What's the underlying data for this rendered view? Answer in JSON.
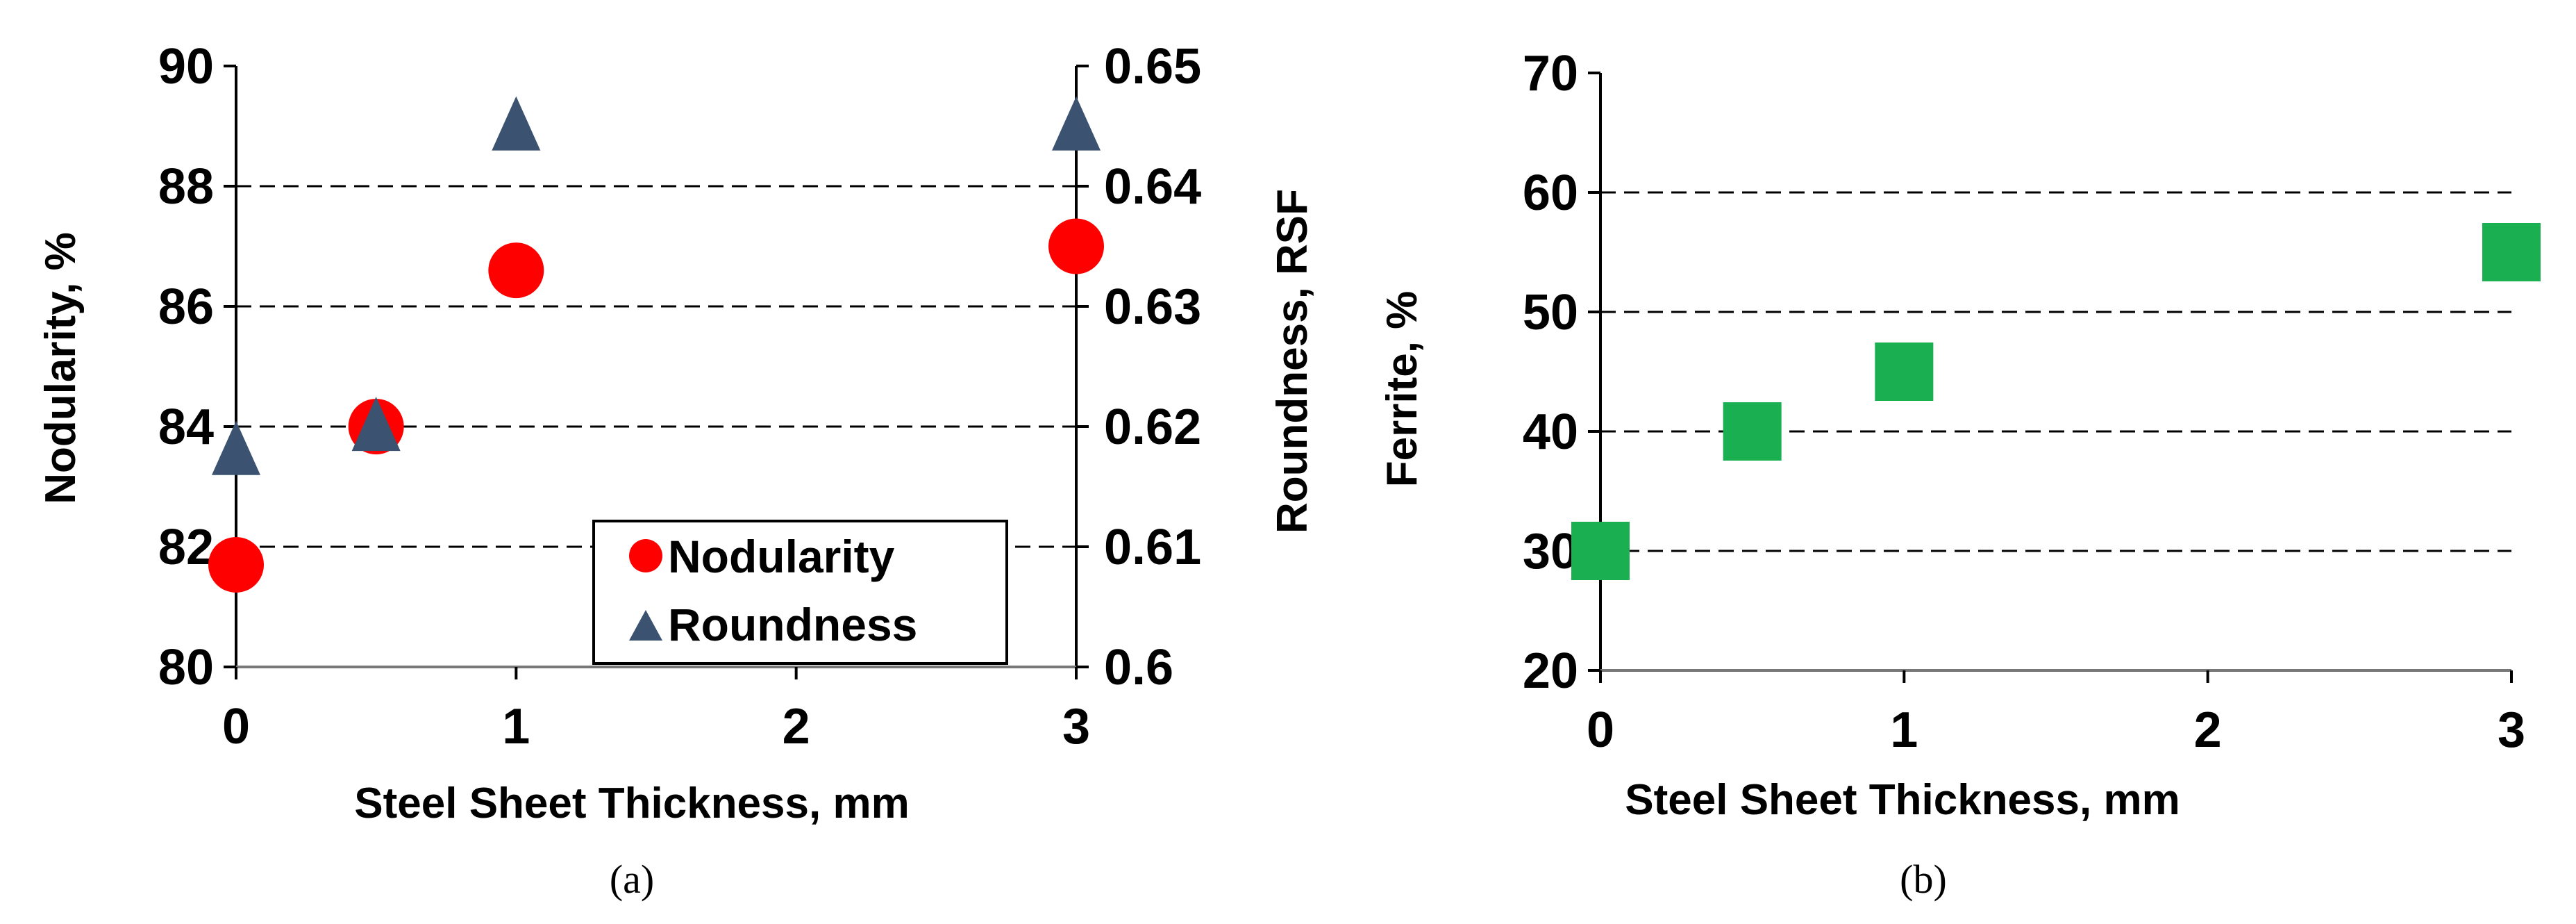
{
  "chart_data": [
    {
      "type": "scatter",
      "caption": "(a)",
      "xlabel": "Steel Sheet Thickness, mm",
      "ylabel": "Nodularity, %",
      "y2label": "Roundness, RSF",
      "xlim": [
        0,
        3
      ],
      "ylim": [
        80,
        90
      ],
      "y2lim": [
        0.6,
        0.65
      ],
      "xticks": [
        "0",
        "1",
        "2",
        "3"
      ],
      "yticks": [
        "80",
        "82",
        "84",
        "86",
        "88",
        "90"
      ],
      "y2ticks": [
        "0.6",
        "0.61",
        "0.62",
        "0.63",
        "0.64",
        "0.65"
      ],
      "grid": "horizontal dashed",
      "legend": "bottom-right",
      "series": [
        {
          "name": "Nodularity",
          "axis": "left",
          "marker": "circle",
          "color": "#ff0000",
          "x": [
            0,
            0.5,
            1,
            3
          ],
          "values": [
            81.7,
            84.0,
            86.6,
            87.0
          ]
        },
        {
          "name": "Roundness",
          "axis": "right",
          "marker": "triangle",
          "color": "#3b5370",
          "x": [
            0,
            0.5,
            1,
            3
          ],
          "values": [
            0.618,
            0.62,
            0.645,
            0.645
          ]
        }
      ]
    },
    {
      "type": "scatter",
      "caption": "(b)",
      "xlabel": "Steel Sheet Thickness, mm",
      "ylabel": "Ferrite, %",
      "xlim": [
        0,
        3
      ],
      "ylim": [
        20,
        70
      ],
      "xticks": [
        "0",
        "1",
        "2",
        "3"
      ],
      "yticks": [
        "20",
        "30",
        "40",
        "50",
        "60",
        "70"
      ],
      "grid": "horizontal dashed",
      "series": [
        {
          "name": "Ferrite",
          "axis": "left",
          "marker": "square",
          "color": "#1aaf50",
          "x": [
            0,
            0.5,
            1,
            3
          ],
          "values": [
            30,
            40,
            45,
            55
          ]
        }
      ]
    }
  ]
}
